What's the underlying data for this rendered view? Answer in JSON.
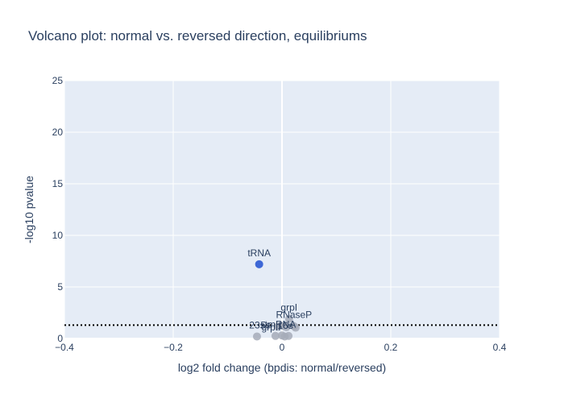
{
  "chart_data": {
    "type": "scatter",
    "title": "Volcano plot: normal vs. reversed direction, equilibriums",
    "xlabel": "log2 fold change (bpdis: normal/reversed)",
    "ylabel": "-log10 pvalue",
    "xlim": [
      -0.4,
      0.4
    ],
    "ylim": [
      0,
      25
    ],
    "xticks": [
      -0.4,
      -0.2,
      0,
      0.2,
      0.4
    ],
    "xtick_labels": [
      "−0.4",
      "−0.2",
      "0",
      "0.2",
      "0.4"
    ],
    "yticks": [
      0,
      5,
      10,
      15,
      20,
      25
    ],
    "ytick_labels": [
      "0",
      "5",
      "10",
      "15",
      "20",
      "25"
    ],
    "threshold_y": 1.3,
    "grid": true,
    "significant_color": "#3d67d6",
    "nonsignificant_color": "#a6acb8",
    "plot_bg_color": "#e5ecf6",
    "points": [
      {
        "label": "tRNA",
        "x": -0.042,
        "y": 7.2,
        "significant": true
      },
      {
        "label": "grpI",
        "x": 0.013,
        "y": 1.9,
        "significant": false
      },
      {
        "label": "23s",
        "x": -0.046,
        "y": 0.2,
        "significant": false
      },
      {
        "label": "RNaseP",
        "x": 0.022,
        "y": 1.2,
        "significant": false
      },
      {
        "label": "",
        "x": -0.012,
        "y": 0.25,
        "significant": false
      },
      {
        "label": "",
        "x": 0.0,
        "y": 0.3,
        "significant": false
      },
      {
        "label": "",
        "x": 0.005,
        "y": 0.2,
        "significant": false
      },
      {
        "label": "",
        "x": 0.012,
        "y": 0.25,
        "significant": false
      },
      {
        "label": "",
        "x": 0.025,
        "y": 1.05,
        "significant": false
      },
      {
        "label": "",
        "x": -0.008,
        "y": 1.15,
        "significant": false
      },
      {
        "label": "",
        "x": 0.002,
        "y": 1.2,
        "significant": false
      },
      {
        "label": "",
        "x": 0.008,
        "y": 1.1,
        "significant": false
      }
    ],
    "extra_labels": [
      {
        "label": "5s",
        "x": -0.03,
        "y": 1.3
      },
      {
        "label": "grpII",
        "x": -0.02,
        "y": 1.1
      },
      {
        "label": "tmRNA",
        "x": -0.003,
        "y": 1.35
      },
      {
        "label": "16s",
        "x": 0.006,
        "y": 1.25
      }
    ]
  }
}
